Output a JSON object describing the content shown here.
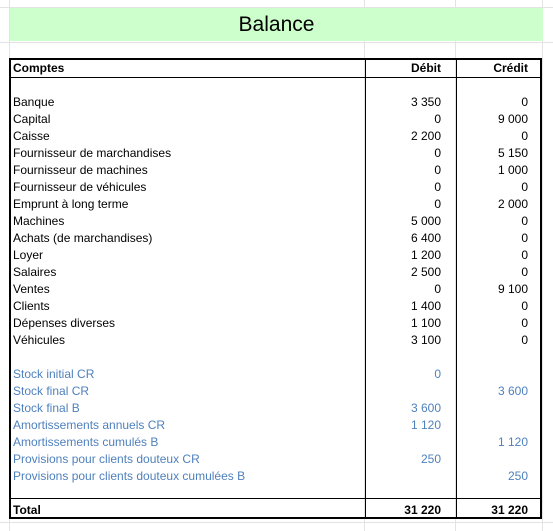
{
  "sheet": {
    "title": "Balance",
    "columns": {
      "account": "Comptes",
      "debit": "Débit",
      "credit": "Crédit"
    },
    "accounts": [
      {
        "name": "Banque",
        "debit": "3 350",
        "credit": "0"
      },
      {
        "name": "Capital",
        "debit": "0",
        "credit": "9 000"
      },
      {
        "name": "Caisse",
        "debit": "2 200",
        "credit": "0"
      },
      {
        "name": "Fournisseur de marchandises",
        "debit": "0",
        "credit": "5 150"
      },
      {
        "name": "Fournisseur de machines",
        "debit": "0",
        "credit": "1 000"
      },
      {
        "name": "Fournisseur de véhicules",
        "debit": "0",
        "credit": "0"
      },
      {
        "name": "Emprunt à long terme",
        "debit": "0",
        "credit": "2 000"
      },
      {
        "name": "Machines",
        "debit": "5 000",
        "credit": "0"
      },
      {
        "name": "Achats (de marchandises)",
        "debit": "6 400",
        "credit": "0"
      },
      {
        "name": "Loyer",
        "debit": "1 200",
        "credit": "0"
      },
      {
        "name": "Salaires",
        "debit": "2 500",
        "credit": "0"
      },
      {
        "name": "Ventes",
        "debit": "0",
        "credit": "9 100"
      },
      {
        "name": "Clients",
        "debit": "1 400",
        "credit": "0"
      },
      {
        "name": "Dépenses diverses",
        "debit": "1 100",
        "credit": "0"
      },
      {
        "name": "Véhicules",
        "debit": "3 100",
        "credit": "0"
      }
    ],
    "adjustments": [
      {
        "name": "Stock initial CR",
        "debit": "0",
        "credit": ""
      },
      {
        "name": "Stock final CR",
        "debit": "",
        "credit": "3 600"
      },
      {
        "name": "Stock final B",
        "debit": "3 600",
        "credit": ""
      },
      {
        "name": "Amortissements annuels CR",
        "debit": "1 120",
        "credit": ""
      },
      {
        "name": "Amortissements cumulés B",
        "debit": "",
        "credit": "1 120"
      },
      {
        "name": "Provisions pour clients douteux CR",
        "debit": "250",
        "credit": ""
      },
      {
        "name": "Provisions pour clients douteux cumulées B",
        "debit": "",
        "credit": "250"
      }
    ],
    "total": {
      "label": "Total",
      "debit": "31 220",
      "credit": "31 220"
    },
    "colors": {
      "title_bg": "#ccffcc",
      "adjustment_text": "#4f81bd"
    }
  }
}
